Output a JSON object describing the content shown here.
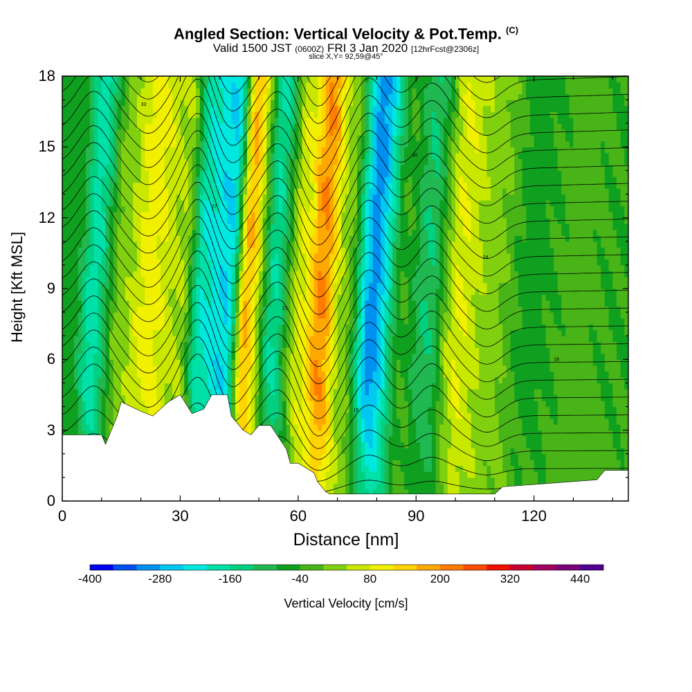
{
  "header": {
    "title_main": "Angled Section: Vertical Velocity & Pot.Temp.",
    "title_unit": "(C)",
    "valid_a": "Valid 1500 JST",
    "valid_b": "(0600Z)",
    "valid_c": "FRI 3 Jan 2020",
    "valid_d": "[12hrFcst@2306z]",
    "slice": "slice X,Y= 92,59@45°"
  },
  "chart_data": {
    "type": "heatmap",
    "xlabel": "Distance [nm]",
    "ylabel": "Height [Kft MSL]",
    "xlim": [
      0,
      144
    ],
    "ylim": [
      0,
      18
    ],
    "x_ticks": [
      "0",
      "30",
      "60",
      "90",
      "120"
    ],
    "y_ticks": [
      "0",
      "3",
      "6",
      "9",
      "12",
      "15",
      "18"
    ],
    "grid": false,
    "colorbar": {
      "label": "Vertical Velocity [cm/s]",
      "tick_labels": [
        "-400",
        "-280",
        "-160",
        "-40",
        "80",
        "200",
        "320",
        "440"
      ],
      "colors": [
        "#0000f0",
        "#0050f0",
        "#0090f0",
        "#00c8f0",
        "#00e8e0",
        "#00e0a8",
        "#00d080",
        "#20b850",
        "#10a020",
        "#48b418",
        "#80d010",
        "#c8e800",
        "#f0f000",
        "#ffd400",
        "#ffa800",
        "#ff7c00",
        "#ff4c00",
        "#f01000",
        "#c80030",
        "#a00060",
        "#780078",
        "#500090"
      ],
      "min": -400,
      "max": 480,
      "step": 40
    },
    "velocity_bands": [
      {
        "x": 2,
        "value": -60
      },
      {
        "x": 7,
        "value": -180
      },
      {
        "x": 14,
        "value": 20
      },
      {
        "x": 21,
        "value": 100
      },
      {
        "x": 29,
        "value": 40
      },
      {
        "x": 35,
        "value": -200
      },
      {
        "x": 41,
        "value": -240
      },
      {
        "x": 46,
        "value": 160
      },
      {
        "x": 53,
        "value": -160
      },
      {
        "x": 60,
        "value": 80
      },
      {
        "x": 65,
        "value": 200
      },
      {
        "x": 71,
        "value": 20
      },
      {
        "x": 78,
        "value": -300
      },
      {
        "x": 86,
        "value": -40
      },
      {
        "x": 92,
        "value": -120
      },
      {
        "x": 100,
        "value": 80
      },
      {
        "x": 108,
        "value": 20
      },
      {
        "x": 118,
        "value": -60
      },
      {
        "x": 130,
        "value": -20
      },
      {
        "x": 140,
        "value": -40
      }
    ],
    "terrain": {
      "x": [
        0,
        10,
        11,
        14,
        15,
        20,
        23,
        27,
        30,
        33,
        36,
        38,
        42,
        43,
        46,
        48,
        50,
        53,
        57,
        58,
        60,
        64,
        65,
        67,
        68,
        110,
        112,
        136,
        138,
        144
      ],
      "y": [
        2.8,
        2.8,
        2.4,
        3.6,
        4.2,
        3.8,
        3.6,
        4.2,
        4.5,
        3.7,
        3.9,
        4.5,
        4.5,
        3.6,
        3.0,
        2.8,
        3.2,
        3.2,
        2.2,
        1.6,
        1.6,
        1.2,
        0.8,
        0.4,
        0.3,
        0.3,
        0.6,
        0.9,
        1.3,
        1.3
      ]
    },
    "isentrope_labels": [
      "12",
      "15",
      "18",
      "21",
      "24",
      "27",
      "30",
      "33"
    ]
  }
}
